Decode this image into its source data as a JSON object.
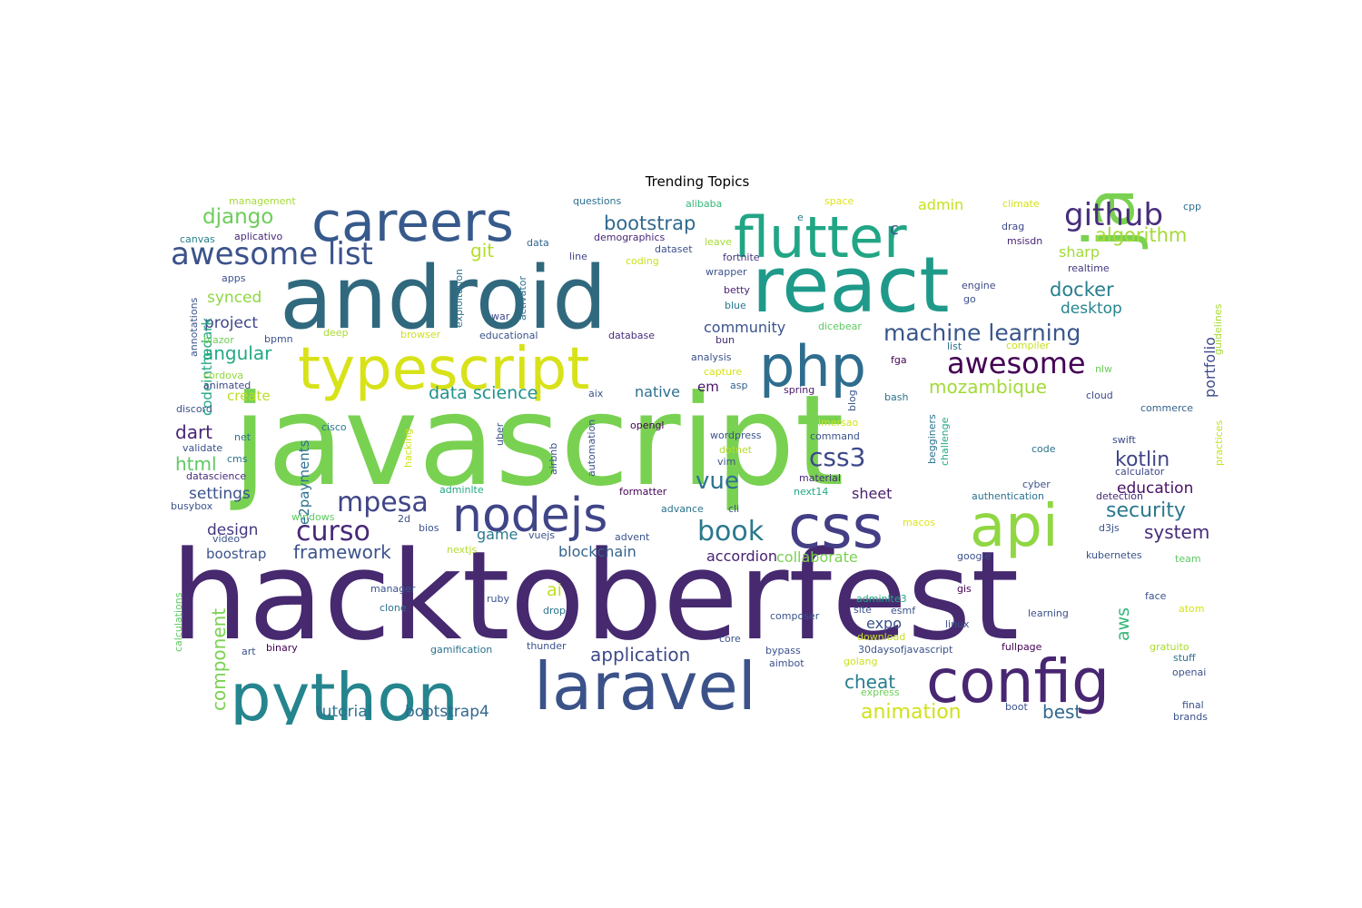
{
  "chart_data": {
    "type": "wordcloud",
    "title": "Trending Topics",
    "words": [
      {
        "text": "hacktoberfest",
        "weight": 100,
        "color": "#46296f"
      },
      {
        "text": "javascript",
        "weight": 94,
        "color": "#79d151"
      },
      {
        "text": "android",
        "weight": 62,
        "color": "#30697e"
      },
      {
        "text": "react",
        "weight": 60,
        "color": "#1f9a8a"
      },
      {
        "text": "python",
        "weight": 44,
        "color": "#25858e"
      },
      {
        "text": "laravel",
        "weight": 44,
        "color": "#3b5289"
      },
      {
        "text": "config",
        "weight": 40,
        "color": "#482671"
      },
      {
        "text": "typescript",
        "weight": 40,
        "color": "#d8e219"
      },
      {
        "text": "careers",
        "weight": 38,
        "color": "#375a8c"
      },
      {
        "text": "css",
        "weight": 38,
        "color": "#433e85"
      },
      {
        "text": "flutter",
        "weight": 38,
        "color": "#21a685"
      },
      {
        "text": "nodejs",
        "weight": 33,
        "color": "#404588"
      },
      {
        "text": "php",
        "weight": 36,
        "color": "#2e6d8e"
      },
      {
        "text": "java",
        "weight": 40,
        "color": "#7ad151"
      },
      {
        "text": "api",
        "weight": 36,
        "color": "#90d743"
      },
      {
        "text": "awesome list",
        "weight": 22,
        "color": "#3b528b"
      },
      {
        "text": "github",
        "weight": 20,
        "color": "#472d7b"
      },
      {
        "text": "awesome",
        "weight": 19,
        "color": "#440154"
      },
      {
        "text": "mpesa",
        "weight": 18,
        "color": "#404688"
      },
      {
        "text": "curso",
        "weight": 18,
        "color": "#482878"
      },
      {
        "text": "book",
        "weight": 17,
        "color": "#2a788e"
      },
      {
        "text": "machine learning",
        "weight": 15,
        "color": "#39568c"
      },
      {
        "text": "css3",
        "weight": 16,
        "color": "#3e4989"
      },
      {
        "text": "vue",
        "weight": 16,
        "color": "#2c728e"
      },
      {
        "text": "django",
        "weight": 14,
        "color": "#6ccd5a"
      },
      {
        "text": "bootstrap",
        "weight": 12,
        "color": "#31688e"
      },
      {
        "text": "algorithm",
        "weight": 12,
        "color": "#a5db36"
      },
      {
        "text": "kotlin",
        "weight": 12,
        "color": "#404588"
      },
      {
        "text": "docker",
        "weight": 12,
        "color": "#277f8e"
      },
      {
        "text": "security",
        "weight": 12,
        "color": "#2a788e"
      },
      {
        "text": "mozambique",
        "weight": 12,
        "color": "#a2da37"
      },
      {
        "text": "animation",
        "weight": 12,
        "color": "#d0e11c"
      },
      {
        "text": "framework",
        "weight": 11,
        "color": "#3b528b"
      },
      {
        "text": "application",
        "weight": 11,
        "color": "#3e4a89"
      },
      {
        "text": "system",
        "weight": 11,
        "color": "#472c7a"
      },
      {
        "text": "data science",
        "weight": 11,
        "color": "#21918c"
      },
      {
        "text": "angular",
        "weight": 11,
        "color": "#22a884"
      },
      {
        "text": "git",
        "weight": 11,
        "color": "#b5de2b"
      },
      {
        "text": "component",
        "weight": 11,
        "color": "#7ad151"
      },
      {
        "text": "education",
        "weight": 10,
        "color": "#471164"
      },
      {
        "text": "desktop",
        "weight": 10,
        "color": "#25848e"
      },
      {
        "text": "cheat",
        "weight": 10,
        "color": "#287d8e"
      },
      {
        "text": "best",
        "weight": 10,
        "color": "#306a8e"
      },
      {
        "text": "html",
        "weight": 11,
        "color": "#5ec962"
      },
      {
        "text": "dart",
        "weight": 11,
        "color": "#482575"
      },
      {
        "text": "aws",
        "weight": 10,
        "color": "#35b779"
      },
      {
        "text": "tutorial",
        "weight": 9,
        "color": "#2c728e"
      },
      {
        "text": "bootstrap4",
        "weight": 9,
        "color": "#31688e"
      },
      {
        "text": "settings",
        "weight": 9,
        "color": "#3b528b"
      },
      {
        "text": "design",
        "weight": 9,
        "color": "#453781"
      },
      {
        "text": "project",
        "weight": 9,
        "color": "#3f4788"
      },
      {
        "text": "synced",
        "weight": 9,
        "color": "#8fd744"
      },
      {
        "text": "community",
        "weight": 9,
        "color": "#3b528b"
      },
      {
        "text": "blockchain",
        "weight": 9,
        "color": "#33638d"
      },
      {
        "text": "accordion",
        "weight": 9,
        "color": "#482173"
      },
      {
        "text": "collaborate",
        "weight": 9,
        "color": "#7ad151"
      },
      {
        "text": "sheet",
        "weight": 9,
        "color": "#481f70"
      },
      {
        "text": "sharp",
        "weight": 9,
        "color": "#a0da39"
      },
      {
        "text": "portfolio",
        "weight": 9,
        "color": "#3e4989"
      },
      {
        "text": "native",
        "weight": 8,
        "color": "#2d708e"
      },
      {
        "text": "game",
        "weight": 8,
        "color": "#2a788e"
      },
      {
        "text": "admin",
        "weight": 8,
        "color": "#c8e020"
      },
      {
        "text": "expo",
        "weight": 8,
        "color": "#3b528b"
      },
      {
        "text": "codeinthedark",
        "weight": 8,
        "color": "#22a884"
      },
      {
        "text": "e2payments",
        "weight": 8,
        "color": "#2c728e"
      },
      {
        "text": "create",
        "weight": 8,
        "color": "#b8de29"
      },
      {
        "text": "boostrap",
        "weight": 8,
        "color": "#3b528b"
      },
      {
        "text": "ai",
        "weight": 10,
        "color": "#bddf26"
      },
      {
        "text": "em",
        "weight": 8,
        "color": "#481467"
      },
      {
        "text": "c",
        "weight": 9,
        "color": "#3b528b"
      },
      {
        "text": "management",
        "weight": 5,
        "color": "#a5db36"
      },
      {
        "text": "canvas",
        "weight": 5,
        "color": "#26828e"
      },
      {
        "text": "aplicativo",
        "weight": 5,
        "color": "#482878"
      },
      {
        "text": "questions",
        "weight": 5,
        "color": "#2d708e"
      },
      {
        "text": "alibaba",
        "weight": 5,
        "color": "#35b779"
      },
      {
        "text": "space",
        "weight": 5,
        "color": "#dde318"
      },
      {
        "text": "climate",
        "weight": 5,
        "color": "#d2e21b"
      },
      {
        "text": "cpp",
        "weight": 5,
        "color": "#2c728e"
      },
      {
        "text": "e",
        "weight": 5,
        "color": "#2a788e"
      },
      {
        "text": "drag",
        "weight": 5,
        "color": "#3e4989"
      },
      {
        "text": "msisdn",
        "weight": 5,
        "color": "#482475"
      },
      {
        "text": "demographics",
        "weight": 5,
        "color": "#482777"
      },
      {
        "text": "dataset",
        "weight": 5,
        "color": "#3b528b"
      },
      {
        "text": "data",
        "weight": 5,
        "color": "#31688e"
      },
      {
        "text": "leave",
        "weight": 5,
        "color": "#a5db36"
      },
      {
        "text": "coding",
        "weight": 5,
        "color": "#cae11f"
      },
      {
        "text": "line",
        "weight": 5,
        "color": "#3f4788"
      },
      {
        "text": "fortnite",
        "weight": 5,
        "color": "#46337f"
      },
      {
        "text": "wrapper",
        "weight": 5,
        "color": "#3b528b"
      },
      {
        "text": "realtime",
        "weight": 5,
        "color": "#453882"
      },
      {
        "text": "apps",
        "weight": 5,
        "color": "#3b528b"
      },
      {
        "text": "betty",
        "weight": 5,
        "color": "#481f70"
      },
      {
        "text": "engine",
        "weight": 5,
        "color": "#3e4989"
      },
      {
        "text": "go",
        "weight": 5,
        "color": "#3b528b"
      },
      {
        "text": "blue",
        "weight": 5,
        "color": "#2a788e"
      },
      {
        "text": "deep",
        "weight": 5,
        "color": "#a8db34"
      },
      {
        "text": "war",
        "weight": 5,
        "color": "#3e4989"
      },
      {
        "text": "educational",
        "weight": 5,
        "color": "#3b528b"
      },
      {
        "text": "database",
        "weight": 5,
        "color": "#46307e"
      },
      {
        "text": "dicebear",
        "weight": 5,
        "color": "#5ec962"
      },
      {
        "text": "blazor",
        "weight": 5,
        "color": "#6ece58"
      },
      {
        "text": "bpmn",
        "weight": 5,
        "color": "#3b528b"
      },
      {
        "text": "browser",
        "weight": 5,
        "color": "#cde11d"
      },
      {
        "text": "bun",
        "weight": 5,
        "color": "#472c7a"
      },
      {
        "text": "list",
        "weight": 5,
        "color": "#2c728e"
      },
      {
        "text": "compiler",
        "weight": 5,
        "color": "#c8e020"
      },
      {
        "text": "analysis",
        "weight": 5,
        "color": "#3b528b"
      },
      {
        "text": "capture",
        "weight": 5,
        "color": "#d5e21a"
      },
      {
        "text": "fga",
        "weight": 5,
        "color": "#440154"
      },
      {
        "text": "nlw",
        "weight": 5,
        "color": "#6ece58"
      },
      {
        "text": "cordova",
        "weight": 5,
        "color": "#93d741"
      },
      {
        "text": "animated",
        "weight": 5,
        "color": "#3e4989"
      },
      {
        "text": "asp",
        "weight": 5,
        "color": "#33638d"
      },
      {
        "text": "spring",
        "weight": 5,
        "color": "#481769"
      },
      {
        "text": "blog",
        "weight": 5,
        "color": "#3b528b"
      },
      {
        "text": "bash",
        "weight": 5,
        "color": "#2c728e"
      },
      {
        "text": "cloud",
        "weight": 5,
        "color": "#3e4989"
      },
      {
        "text": "discord",
        "weight": 5,
        "color": "#3b528b"
      },
      {
        "text": "aix",
        "weight": 5,
        "color": "#3b528b"
      },
      {
        "text": "opengl",
        "weight": 5,
        "color": "#440154"
      },
      {
        "text": "commerce",
        "weight": 5,
        "color": "#33638d"
      },
      {
        "text": "imersao",
        "weight": 5,
        "color": "#d0e11c"
      },
      {
        "text": "cisco",
        "weight": 5,
        "color": "#2a788e"
      },
      {
        "text": "net",
        "weight": 5,
        "color": "#2c728e"
      },
      {
        "text": "wordpress",
        "weight": 5,
        "color": "#3b528b"
      },
      {
        "text": "command",
        "weight": 5,
        "color": "#3b528b"
      },
      {
        "text": "swift",
        "weight": 5,
        "color": "#3e4989"
      },
      {
        "text": "validate",
        "weight": 5,
        "color": "#3b528b"
      },
      {
        "text": "cms",
        "weight": 5,
        "color": "#2c728e"
      },
      {
        "text": "dotnet",
        "weight": 5,
        "color": "#b2dd2d"
      },
      {
        "text": "vim",
        "weight": 5,
        "color": "#3b528b"
      },
      {
        "text": "code",
        "weight": 5,
        "color": "#2c728e"
      },
      {
        "text": "calculator",
        "weight": 5,
        "color": "#3e4989"
      },
      {
        "text": "material",
        "weight": 5,
        "color": "#472c7a"
      },
      {
        "text": "datascience",
        "weight": 5,
        "color": "#472c7a"
      },
      {
        "text": "next14",
        "weight": 5,
        "color": "#22a884"
      },
      {
        "text": "cyber",
        "weight": 5,
        "color": "#3b528b"
      },
      {
        "text": "authentication",
        "weight": 5,
        "color": "#2c728e"
      },
      {
        "text": "detection",
        "weight": 5,
        "color": "#472c7a"
      },
      {
        "text": "adminlte",
        "weight": 5,
        "color": "#22a884"
      },
      {
        "text": "formatter",
        "weight": 5,
        "color": "#440154"
      },
      {
        "text": "busybox",
        "weight": 5,
        "color": "#3b528b"
      },
      {
        "text": "advance",
        "weight": 5,
        "color": "#2c728e"
      },
      {
        "text": "cli",
        "weight": 5,
        "color": "#3b528b"
      },
      {
        "text": "windows",
        "weight": 5,
        "color": "#5ec962"
      },
      {
        "text": "2d",
        "weight": 5,
        "color": "#3b528b"
      },
      {
        "text": "bios",
        "weight": 5,
        "color": "#3b528b"
      },
      {
        "text": "vuejs",
        "weight": 5,
        "color": "#3b528b"
      },
      {
        "text": "advent",
        "weight": 5,
        "color": "#3b528b"
      },
      {
        "text": "macos",
        "weight": 5,
        "color": "#dde318"
      },
      {
        "text": "d3js",
        "weight": 5,
        "color": "#3b528b"
      },
      {
        "text": "video",
        "weight": 5,
        "color": "#3b528b"
      },
      {
        "text": "nextjs",
        "weight": 5,
        "color": "#b2dd2d"
      },
      {
        "text": "google",
        "weight": 5,
        "color": "#3b528b"
      },
      {
        "text": "kubernetes",
        "weight": 5,
        "color": "#3b528b"
      },
      {
        "text": "team",
        "weight": 5,
        "color": "#5ec962"
      },
      {
        "text": "manager",
        "weight": 5,
        "color": "#3b528b"
      },
      {
        "text": "ruby",
        "weight": 5,
        "color": "#3b528b"
      },
      {
        "text": "clone",
        "weight": 5,
        "color": "#2c728e"
      },
      {
        "text": "drop",
        "weight": 5,
        "color": "#2c728e"
      },
      {
        "text": "adminlte3",
        "weight": 5,
        "color": "#22a884"
      },
      {
        "text": "gis",
        "weight": 5,
        "color": "#440154"
      },
      {
        "text": "face",
        "weight": 5,
        "color": "#3b528b"
      },
      {
        "text": "site",
        "weight": 5,
        "color": "#3b528b"
      },
      {
        "text": "esmf",
        "weight": 5,
        "color": "#3b528b"
      },
      {
        "text": "learning",
        "weight": 5,
        "color": "#3b528b"
      },
      {
        "text": "composer",
        "weight": 5,
        "color": "#3b528b"
      },
      {
        "text": "linux",
        "weight": 5,
        "color": "#3b528b"
      },
      {
        "text": "atom",
        "weight": 5,
        "color": "#d5e21a"
      },
      {
        "text": "download",
        "weight": 5,
        "color": "#c8e020"
      },
      {
        "text": "binary",
        "weight": 5,
        "color": "#440154"
      },
      {
        "text": "art",
        "weight": 5,
        "color": "#3b528b"
      },
      {
        "text": "golang",
        "weight": 5,
        "color": "#cde11d"
      },
      {
        "text": "core",
        "weight": 5,
        "color": "#3b528b"
      },
      {
        "text": "gamification",
        "weight": 5,
        "color": "#2c728e"
      },
      {
        "text": "thunder",
        "weight": 5,
        "color": "#3b528b"
      },
      {
        "text": "bypass",
        "weight": 5,
        "color": "#3b528b"
      },
      {
        "text": "30daysofjavascript",
        "weight": 5,
        "color": "#3b528b"
      },
      {
        "text": "fullpage",
        "weight": 5,
        "color": "#440154"
      },
      {
        "text": "gratuito",
        "weight": 5,
        "color": "#a8db34"
      },
      {
        "text": "aimbot",
        "weight": 5,
        "color": "#3b528b"
      },
      {
        "text": "stuff",
        "weight": 5,
        "color": "#2c728e"
      },
      {
        "text": "openai",
        "weight": 5,
        "color": "#3b528b"
      },
      {
        "text": "express",
        "weight": 5,
        "color": "#6ece58"
      },
      {
        "text": "boot",
        "weight": 5,
        "color": "#3b528b"
      },
      {
        "text": "final",
        "weight": 5,
        "color": "#3b528b"
      },
      {
        "text": "brands",
        "weight": 5,
        "color": "#3b528b"
      },
      {
        "text": "exploitation",
        "weight": 5,
        "color": "#2c728e"
      },
      {
        "text": "activator",
        "weight": 5,
        "color": "#2c728e"
      },
      {
        "text": "annotations",
        "weight": 5,
        "color": "#3b528b"
      },
      {
        "text": "hacking",
        "weight": 5,
        "color": "#cde11d"
      },
      {
        "text": "automation",
        "weight": 5,
        "color": "#3b528b"
      },
      {
        "text": "uber",
        "weight": 5,
        "color": "#3b528b"
      },
      {
        "text": "airbnb",
        "weight": 5,
        "color": "#3b528b"
      },
      {
        "text": "begginers",
        "weight": 5,
        "color": "#2c728e"
      },
      {
        "text": "challenge",
        "weight": 5,
        "color": "#22a884"
      },
      {
        "text": "guidelines",
        "weight": 5,
        "color": "#a8db34"
      },
      {
        "text": "practices",
        "weight": 5,
        "color": "#c8e020"
      },
      {
        "text": "calculations",
        "weight": 5,
        "color": "#5ec962"
      }
    ]
  }
}
